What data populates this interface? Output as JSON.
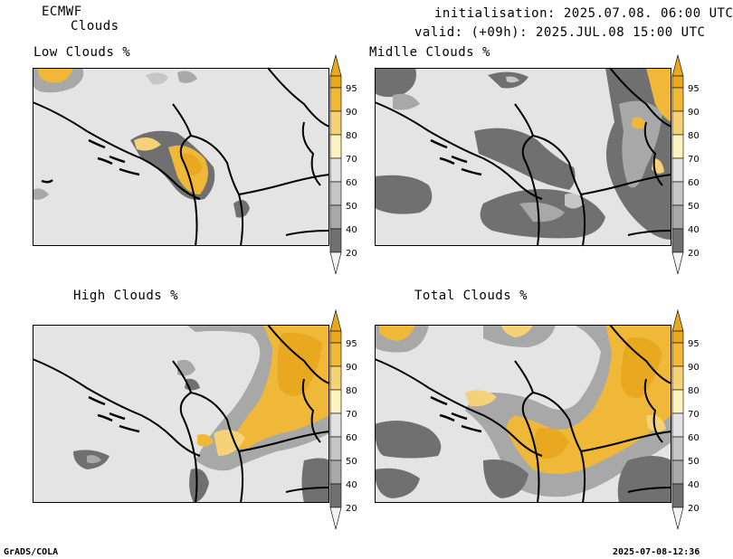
{
  "header": {
    "model": "ECMWF",
    "product": "Clouds",
    "initialisation": "initialisation: 2025.07.08. 06:00 UTC",
    "valid": "valid: (+09h): 2025.JUL.08 15:00 UTC"
  },
  "footer": {
    "software": "GrADS/COLA",
    "timestamp": "2025-07-08-12:36"
  },
  "panels": [
    {
      "id": "low",
      "title": "Low Clouds %"
    },
    {
      "id": "middle",
      "title": "Midlle Clouds %"
    },
    {
      "id": "high",
      "title": "High Clouds %"
    },
    {
      "id": "total",
      "title": "Total Clouds %"
    }
  ],
  "colorbar": {
    "levels": [
      "95",
      "90",
      "80",
      "70",
      "60",
      "50",
      "40",
      "20"
    ],
    "colors": {
      "above_95": "#e8a920",
      "90_95": "#f0b838",
      "80_90": "#f5d278",
      "70_80": "#fbf3c0",
      "60_70": "#e2e2e2",
      "50_60": "#c6c6c6",
      "40_50": "#a8a8a8",
      "20_40": "#707070",
      "below_20": "#f4f4f4"
    }
  },
  "map_colors": {
    "background": "#e4e4e4",
    "boundary": "#000000"
  }
}
